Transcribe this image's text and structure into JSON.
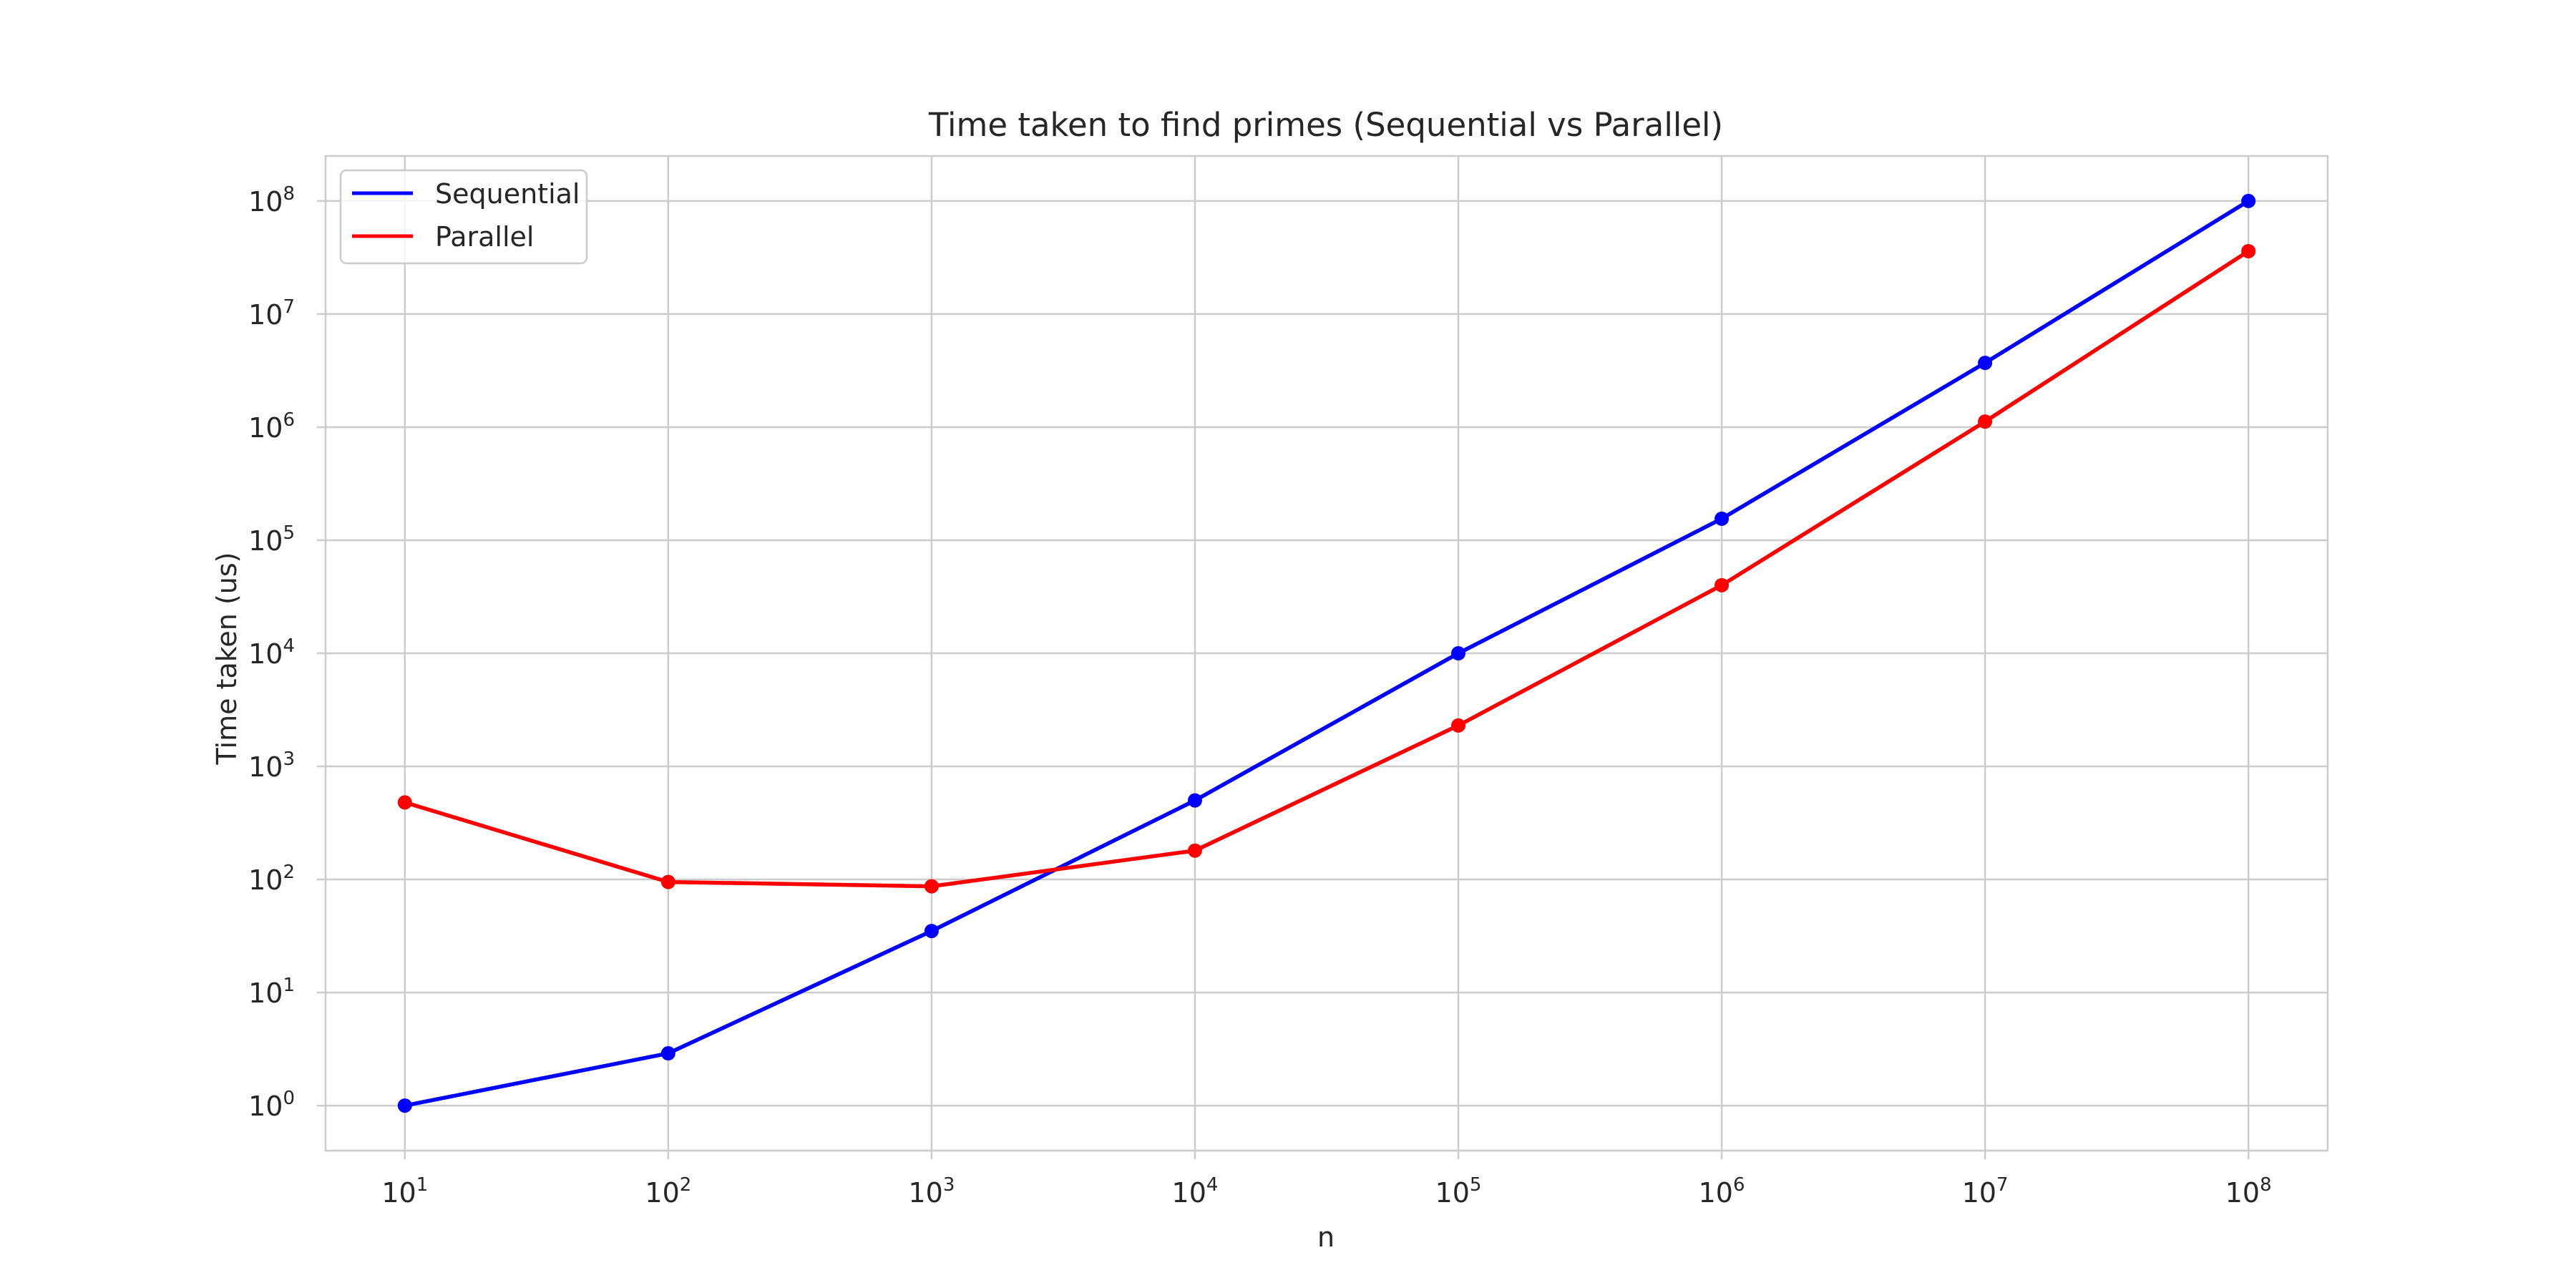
{
  "chart_data": {
    "type": "line",
    "title": "Time taken to find primes (Sequential vs Parallel)",
    "xlabel": "n",
    "ylabel": "Time taken (us)",
    "xscale": "log",
    "yscale": "log",
    "grid": true,
    "legend_position": "top-left",
    "x": [
      10,
      100,
      1000,
      10000,
      100000,
      1000000,
      10000000,
      100000000
    ],
    "x_ticks": [
      {
        "base": "10",
        "exp": "1"
      },
      {
        "base": "10",
        "exp": "2"
      },
      {
        "base": "10",
        "exp": "3"
      },
      {
        "base": "10",
        "exp": "4"
      },
      {
        "base": "10",
        "exp": "5"
      },
      {
        "base": "10",
        "exp": "6"
      },
      {
        "base": "10",
        "exp": "7"
      },
      {
        "base": "10",
        "exp": "8"
      }
    ],
    "y_ticks": [
      {
        "base": "10",
        "exp": "0"
      },
      {
        "base": "10",
        "exp": "1"
      },
      {
        "base": "10",
        "exp": "2"
      },
      {
        "base": "10",
        "exp": "3"
      },
      {
        "base": "10",
        "exp": "4"
      },
      {
        "base": "10",
        "exp": "5"
      },
      {
        "base": "10",
        "exp": "6"
      },
      {
        "base": "10",
        "exp": "7"
      },
      {
        "base": "10",
        "exp": "8"
      }
    ],
    "xlim": [
      5,
      200000000
    ],
    "ylim": [
      0.4,
      250000000
    ],
    "series": [
      {
        "name": "Sequential",
        "color": "#0000ff",
        "values": [
          1,
          2.9,
          35,
          500,
          10000,
          155000,
          3700000,
          100000000
        ]
      },
      {
        "name": "Parallel",
        "color": "#ff0000",
        "values": [
          480,
          95,
          87,
          180,
          2300,
          40000,
          1120000,
          36000000
        ]
      }
    ]
  }
}
